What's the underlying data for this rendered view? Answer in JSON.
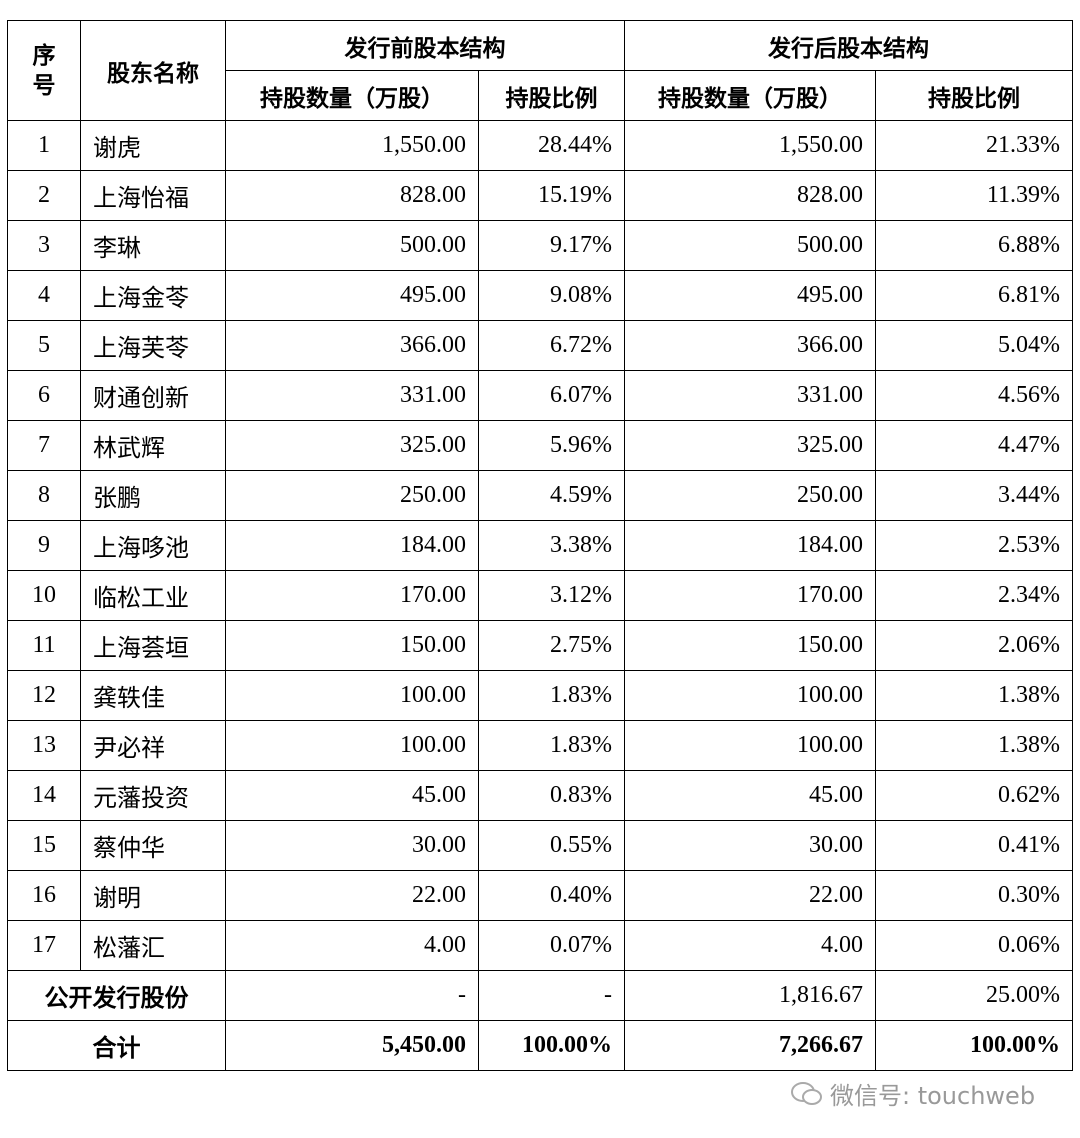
{
  "table": {
    "header": {
      "seq": "序号",
      "name": "股东名称",
      "before": "发行前股本结构",
      "after": "发行后股本结构",
      "columns": [
        "持股数量（万股）",
        "持股比例",
        "持股数量（万股）",
        "持股比例"
      ]
    },
    "rows": [
      [
        "1",
        "谢虎",
        "1,550.00",
        "28.44%",
        "1,550.00",
        "21.33%"
      ],
      [
        "2",
        "上海怡福",
        "828.00",
        "15.19%",
        "828.00",
        "11.39%"
      ],
      [
        "3",
        "李琳",
        "500.00",
        "9.17%",
        "500.00",
        "6.88%"
      ],
      [
        "4",
        "上海金苓",
        "495.00",
        "9.08%",
        "495.00",
        "6.81%"
      ],
      [
        "5",
        "上海芙苓",
        "366.00",
        "6.72%",
        "366.00",
        "5.04%"
      ],
      [
        "6",
        "财通创新",
        "331.00",
        "6.07%",
        "331.00",
        "4.56%"
      ],
      [
        "7",
        "林武辉",
        "325.00",
        "5.96%",
        "325.00",
        "4.47%"
      ],
      [
        "8",
        "张鹏",
        "250.00",
        "4.59%",
        "250.00",
        "3.44%"
      ],
      [
        "9",
        "上海哆池",
        "184.00",
        "3.38%",
        "184.00",
        "2.53%"
      ],
      [
        "10",
        "临松工业",
        "170.00",
        "3.12%",
        "170.00",
        "2.34%"
      ],
      [
        "11",
        "上海荟垣",
        "150.00",
        "2.75%",
        "150.00",
        "2.06%"
      ],
      [
        "12",
        "龚轶佳",
        "100.00",
        "1.83%",
        "100.00",
        "1.38%"
      ],
      [
        "13",
        "尹必祥",
        "100.00",
        "1.83%",
        "100.00",
        "1.38%"
      ],
      [
        "14",
        "元藩投资",
        "45.00",
        "0.83%",
        "45.00",
        "0.62%"
      ],
      [
        "15",
        "蔡仲华",
        "30.00",
        "0.55%",
        "30.00",
        "0.41%"
      ],
      [
        "16",
        "谢明",
        "22.00",
        "0.40%",
        "22.00",
        "0.30%"
      ],
      [
        "17",
        "松藩汇",
        "4.00",
        "0.07%",
        "4.00",
        "0.06%"
      ]
    ],
    "public_offering": [
      "公开发行股份",
      "-",
      "-",
      "1,816.67",
      "25.00%"
    ],
    "total": [
      "合计",
      "5,450.00",
      "100.00%",
      "7,266.67",
      "100.00%"
    ]
  },
  "watermark": "微信号: touchweb"
}
